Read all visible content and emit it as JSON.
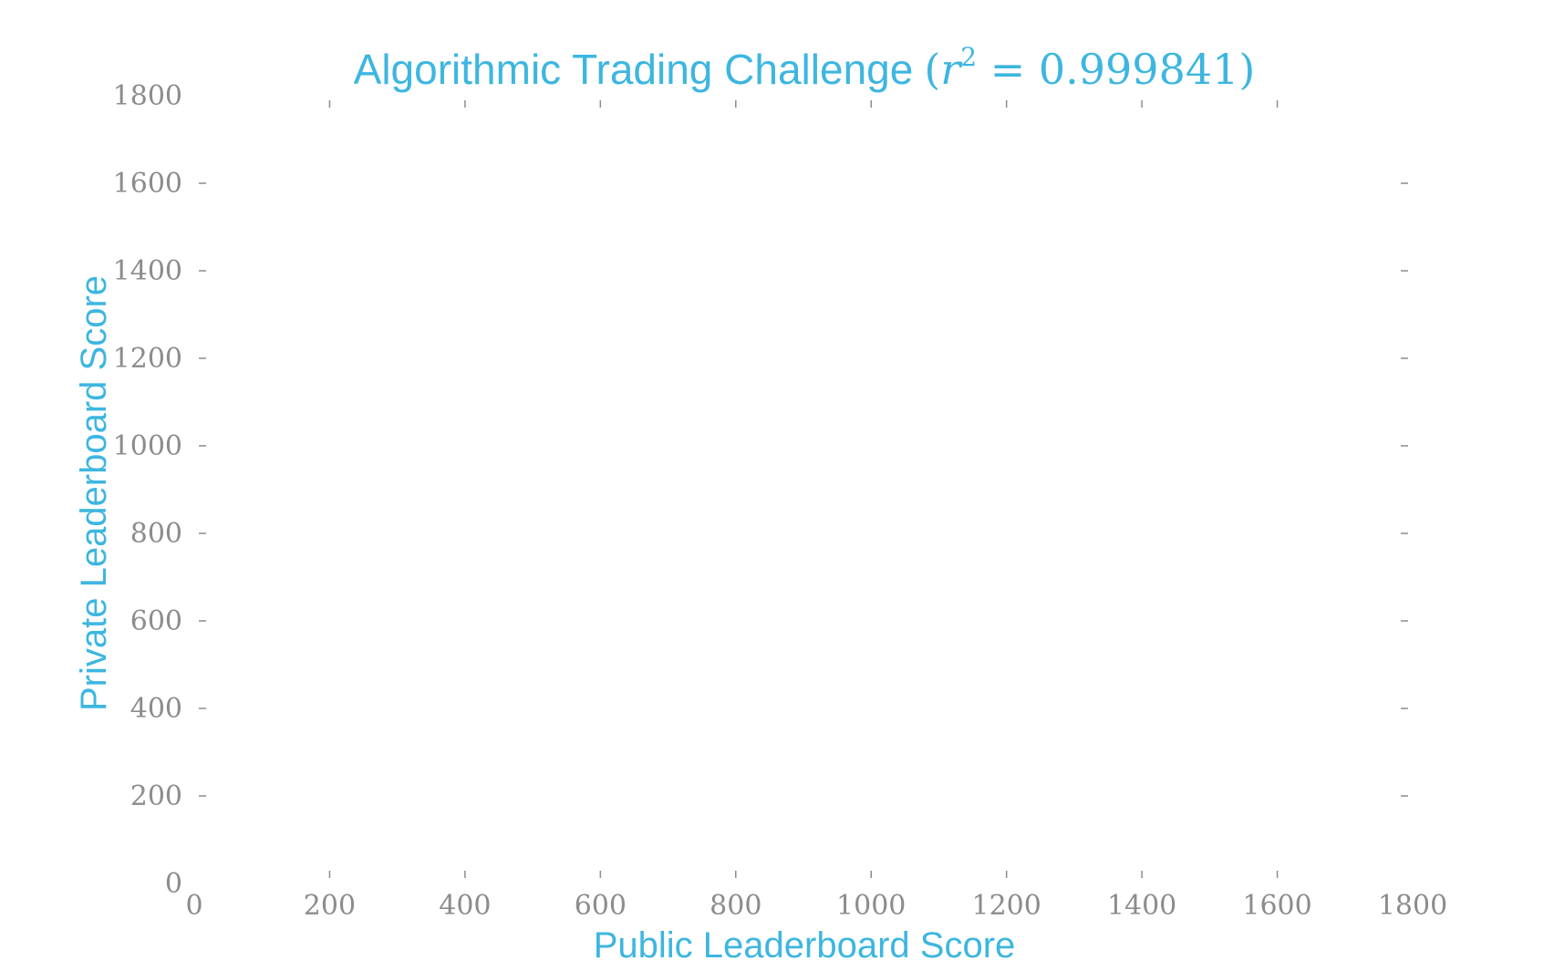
{
  "colors": {
    "accent": "#3db6e0",
    "tick": "#8c8c8c",
    "background": "#ffffff"
  },
  "chart_data": {
    "type": "scatter",
    "title": {
      "text": "Algorithmic Trading Challenge",
      "math_open": "(",
      "math_var": "r",
      "math_exp": "2",
      "math_eq": " = 0.999841",
      "math_close": ")"
    },
    "xlabel": "Public Leaderboard Score",
    "ylabel": "Private Leaderboard Score",
    "xlim": [
      0,
      1800
    ],
    "ylim": [
      0,
      1800
    ],
    "x_ticks": [
      "0",
      "200",
      "400",
      "600",
      "800",
      "1000",
      "1200",
      "1400",
      "1600",
      "1800"
    ],
    "y_ticks": [
      "0",
      "200",
      "400",
      "600",
      "800",
      "1000",
      "1200",
      "1400",
      "1600",
      "1800"
    ],
    "grid": false,
    "series": []
  }
}
